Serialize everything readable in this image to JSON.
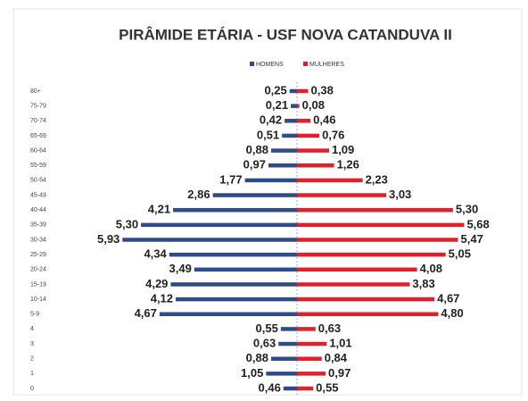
{
  "chart_data": {
    "type": "bar",
    "title": "PIRÂMIDE ETÁRIA - USF NOVA CATANDUVA II",
    "categories": [
      "80+",
      "75-79",
      "70-74",
      "65-69",
      "60-64",
      "55-59",
      "50-54",
      "45-49",
      "40-44",
      "35-39",
      "30-34",
      "25-29",
      "20-24",
      "15-19",
      "10-14",
      "5-9",
      "4",
      "3",
      "2",
      "1",
      "0"
    ],
    "series": [
      {
        "name": "HOMENS",
        "color": "#2f4b8a",
        "values": [
          0.25,
          0.21,
          0.42,
          0.51,
          0.88,
          0.97,
          1.77,
          2.86,
          4.21,
          5.3,
          5.93,
          4.34,
          3.49,
          4.29,
          4.12,
          4.67,
          0.55,
          0.63,
          0.88,
          1.05,
          0.46
        ],
        "value_labels": [
          "0,25",
          "0,21",
          "0,42",
          "0,51",
          "0,88",
          "0,97",
          "1,77",
          "2,86",
          "4,21",
          "5,30",
          "5,93",
          "4,34",
          "3,49",
          "4,29",
          "4,12",
          "4,67",
          "0,55",
          "0,63",
          "0,88",
          "1,05",
          "0,46"
        ]
      },
      {
        "name": "MULHERES",
        "color": "#e0202a",
        "values": [
          0.38,
          0.08,
          0.46,
          0.76,
          1.09,
          1.26,
          2.23,
          3.03,
          5.3,
          5.68,
          5.47,
          5.05,
          4.08,
          3.83,
          4.67,
          4.8,
          0.63,
          1.01,
          0.84,
          0.97,
          0.55
        ],
        "value_labels": [
          "0,38",
          "0,08",
          "0,46",
          "0,76",
          "1,09",
          "1,26",
          "2,23",
          "3,03",
          "5,30",
          "5,68",
          "5,47",
          "5,05",
          "4,08",
          "3,83",
          "4,67",
          "4,80",
          "0,63",
          "1,01",
          "0,84",
          "0,97",
          "0,55"
        ]
      }
    ]
  }
}
